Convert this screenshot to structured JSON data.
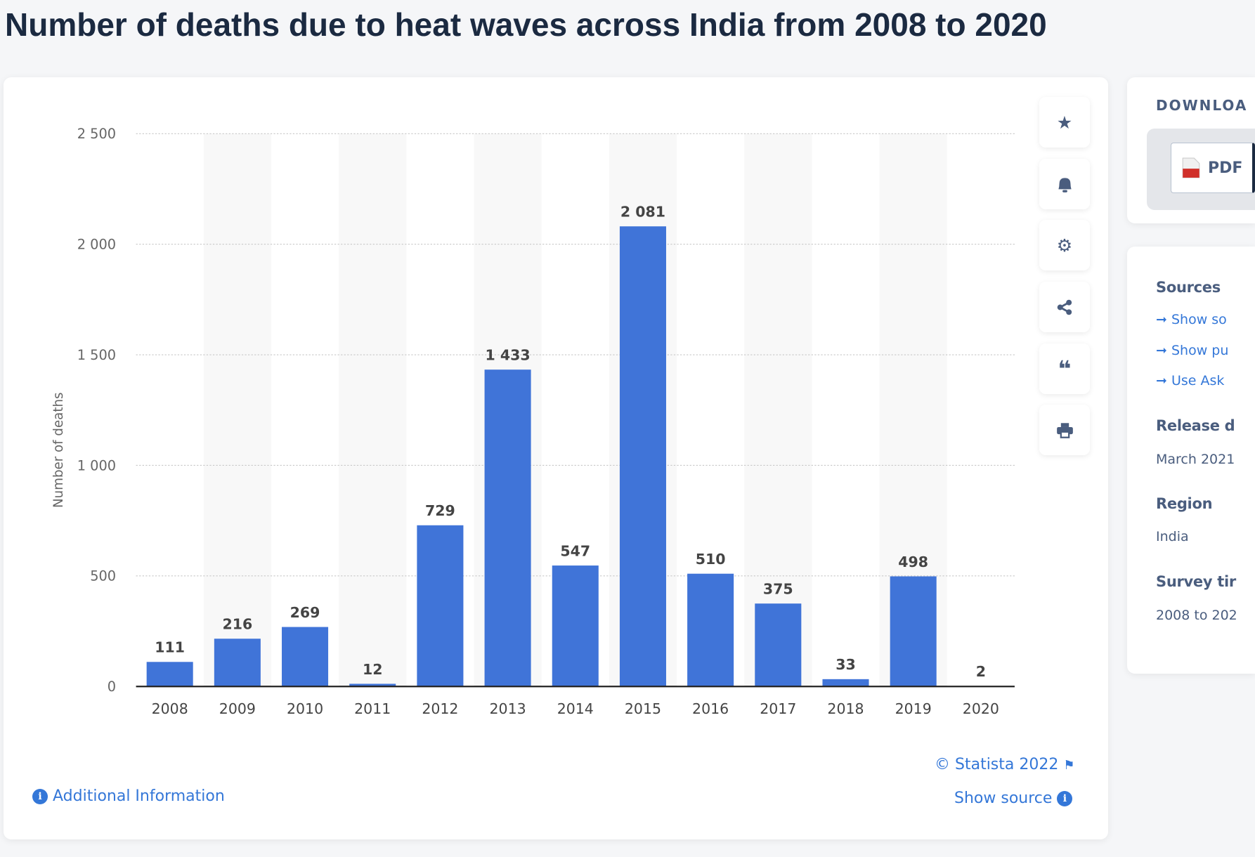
{
  "title": "Number of deaths due to heat waves across India from 2008 to 2020",
  "chart_data": {
    "type": "bar",
    "title": "",
    "xlabel": "",
    "ylabel": "Number of deaths",
    "categories": [
      "2008",
      "2009",
      "2010",
      "2011",
      "2012",
      "2013",
      "2014",
      "2015",
      "2016",
      "2017",
      "2018",
      "2019",
      "2020"
    ],
    "values": [
      111,
      216,
      269,
      12,
      729,
      1433,
      547,
      2081,
      510,
      375,
      33,
      498,
      2
    ],
    "value_labels": [
      "111",
      "216",
      "269",
      "12",
      "729",
      "1 433",
      "547",
      "2 081",
      "510",
      "375",
      "33",
      "498",
      "2"
    ],
    "ylim": [
      0,
      2500
    ],
    "yticks": [
      0,
      500,
      1000,
      1500,
      2000,
      2500
    ],
    "ytick_labels": [
      "0",
      "500",
      "1 000",
      "1 500",
      "2 000",
      "2 500"
    ],
    "grid": true,
    "bar_color": "#4074d8"
  },
  "toolbar": {
    "icons": [
      "star-icon",
      "bell-icon",
      "gear-icon",
      "share-icon",
      "quote-icon",
      "print-icon"
    ]
  },
  "footer": {
    "copyright": "© Statista 2022",
    "show_source": "Show source",
    "additional_info": "Additional Information"
  },
  "download": {
    "heading": "DOWNLOA",
    "pdf": "PDF"
  },
  "details": {
    "sources_label": "Sources",
    "source_links": [
      "Show so",
      "Show pu",
      "Use Ask"
    ],
    "release_label": "Release d",
    "release_value": "March 2021",
    "region_label": "Region",
    "region_value": "India",
    "survey_label": "Survey tir",
    "survey_value": "2008 to 202"
  }
}
